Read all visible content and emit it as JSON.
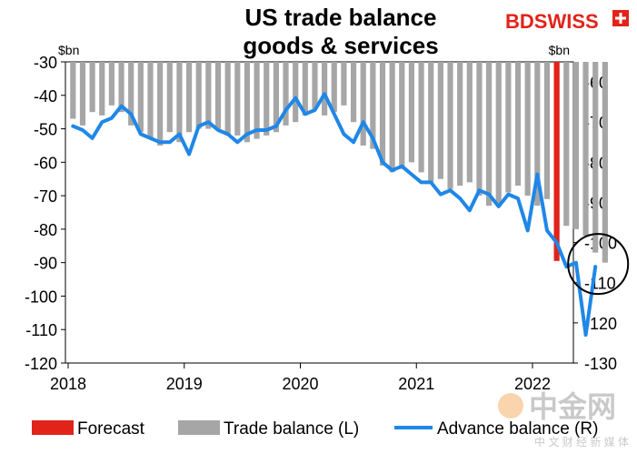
{
  "title_line1": "US trade balance",
  "title_line2": "goods & services",
  "brand": {
    "logo_text": "BDSWISS",
    "logo_color": "#e2231a",
    "watermark_text": "中金网",
    "watermark_sub": "中 文 财 经 新 媒 体"
  },
  "chart_data": {
    "type": "bar",
    "units_left": "$bn",
    "units_right": "$bn",
    "x_ticks": [
      "2018",
      "2019",
      "2020",
      "2021",
      "2022"
    ],
    "y_left": {
      "min": -120,
      "max": -30,
      "ticks": [
        -30,
        -40,
        -50,
        -60,
        -70,
        -80,
        -90,
        -100,
        -110,
        -120
      ]
    },
    "y_right": {
      "min": -130,
      "max": -55,
      "ticks": [
        -60,
        -70,
        -80,
        -90,
        -100,
        -110,
        -120,
        -130
      ]
    },
    "legend": [
      {
        "label": "Forecast",
        "color": "#e2231a",
        "kind": "bar"
      },
      {
        "label": "Trade balance (L)",
        "color": "#a6a6a6",
        "kind": "bar"
      },
      {
        "label": "Advance balance (R)",
        "color": "#1f87e8",
        "kind": "line"
      }
    ],
    "series": [
      {
        "name": "Trade balance (L)",
        "axis": "left",
        "color": "#a6a6a6",
        "start": "2018-01",
        "values": [
          -47,
          -49,
          -45,
          -46,
          -43,
          -45,
          -49,
          -51,
          -53,
          -55,
          -51,
          -54,
          -51,
          -50,
          -50,
          -50,
          -52,
          -52,
          -54,
          -53,
          -52,
          -51,
          -49,
          -48,
          -46,
          -44,
          -46,
          -45,
          -43,
          -48,
          -55,
          -56,
          -61,
          -63,
          -62,
          -60,
          -63,
          -66,
          -65,
          -68,
          -67,
          -66,
          -70,
          -73,
          -73,
          -69,
          -67,
          -70,
          -73,
          -71,
          -81,
          -79,
          -80,
          -82,
          -87,
          -90
        ]
      },
      {
        "name": "Forecast",
        "axis": "left",
        "color": "#e2231a",
        "start": "2022-03",
        "values": [
          -89.5
        ]
      },
      {
        "name": "Advance balance (R)",
        "axis": "right",
        "color": "#1f87e8",
        "start": "2018-01",
        "values": [
          -71,
          -72,
          -74,
          -70,
          -69,
          -66,
          -68,
          -73,
          -74,
          -75,
          -75,
          -73,
          -78,
          -71,
          -70,
          -72,
          -73,
          -75,
          -73,
          -72,
          -72,
          -71,
          -67,
          -64,
          -68,
          -67,
          -63,
          -68,
          -73,
          -75,
          -70,
          -74,
          -80,
          -82,
          -81,
          -83,
          -85,
          -85,
          -88,
          -87,
          -89,
          -92,
          -87,
          -88,
          -91,
          -88,
          -89,
          -97,
          -83,
          -97,
          -100,
          -106,
          -105,
          -123,
          -106
        ]
      }
    ],
    "annotation": "black circle around the latest data point"
  }
}
